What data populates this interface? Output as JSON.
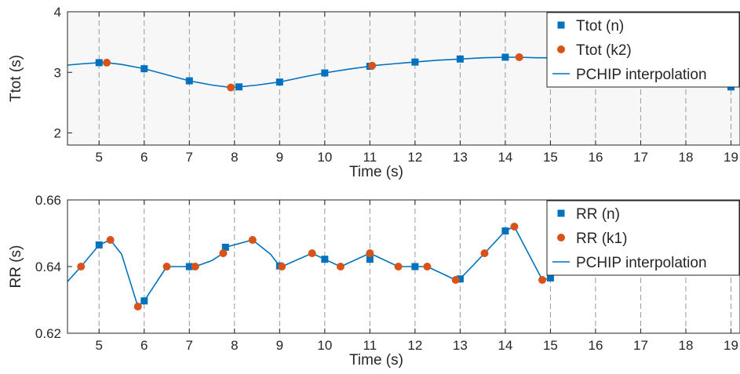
{
  "colors": {
    "series_n": "#0072BD",
    "series_k": "#D95319",
    "interp": "#0072BD",
    "panel_bg_top": "#F7F7F7",
    "axis": "#262626",
    "vline": "#9A9A9A"
  },
  "chart_data": [
    {
      "type": "line",
      "xlabel": "Time (s)",
      "ylabel": "Ttot (s)",
      "xlim": [
        4.3,
        19.2
      ],
      "ylim": [
        1.8,
        4.0
      ],
      "xticks": [
        5,
        6,
        7,
        8,
        9,
        10,
        11,
        12,
        13,
        14,
        15,
        16,
        17,
        18,
        19
      ],
      "yticks": [
        2,
        3,
        4
      ],
      "grid": "vertical dashed lines at integer seconds",
      "legend_position": "top-right",
      "legend": [
        "Ttot (n)",
        "Ttot (k2)",
        "PCHIP interpolation"
      ],
      "series": [
        {
          "name": "Ttot (n)",
          "marker": "square",
          "x": [
            5.0,
            6.0,
            7.0,
            8.1,
            9.0,
            10.0,
            11.0,
            12.0,
            13.0,
            14.0,
            19.0
          ],
          "y": [
            3.16,
            3.06,
            2.86,
            2.76,
            2.84,
            2.99,
            3.1,
            3.17,
            3.22,
            3.25,
            2.76
          ]
        },
        {
          "name": "Ttot (k2)",
          "marker": "circle",
          "x": [
            5.17,
            7.92,
            11.05,
            14.31
          ],
          "y": [
            3.16,
            2.75,
            3.11,
            3.25
          ]
        },
        {
          "name": "PCHIP interpolation",
          "marker": "none",
          "x": [
            4.3,
            4.6,
            5.0,
            5.17,
            5.5,
            6.0,
            6.5,
            7.0,
            7.5,
            7.92,
            8.1,
            8.5,
            9.0,
            9.5,
            10.0,
            10.5,
            11.0,
            11.05,
            11.5,
            12.0,
            12.5,
            13.0,
            13.5,
            14.0,
            14.31,
            14.7,
            15.0,
            15.3
          ],
          "y": [
            3.12,
            3.14,
            3.16,
            3.16,
            3.13,
            3.06,
            2.96,
            2.86,
            2.79,
            2.75,
            2.76,
            2.79,
            2.84,
            2.92,
            2.99,
            3.05,
            3.1,
            3.11,
            3.14,
            3.17,
            3.2,
            3.22,
            3.24,
            3.25,
            3.25,
            3.24,
            3.24,
            3.24
          ]
        }
      ]
    },
    {
      "type": "line",
      "xlabel": "Time (s)",
      "ylabel": "RR (s)",
      "xlim": [
        4.3,
        19.2
      ],
      "ylim": [
        0.62,
        0.66
      ],
      "xticks": [
        5,
        6,
        7,
        8,
        9,
        10,
        11,
        12,
        13,
        14,
        15,
        16,
        17,
        18,
        19
      ],
      "yticks": [
        0.62,
        0.64,
        0.66
      ],
      "grid": "vertical dashed lines at integer seconds",
      "legend_position": "top-right",
      "legend": [
        "RR (n)",
        "RR (k1)",
        "PCHIP interpolation"
      ],
      "series": [
        {
          "name": "RR (n)",
          "marker": "square",
          "x": [
            5.0,
            6.0,
            7.0,
            7.8,
            9.0,
            10.0,
            11.0,
            12.0,
            13.0,
            14.0,
            15.0
          ],
          "y": [
            0.6465,
            0.6297,
            0.64,
            0.6458,
            0.6402,
            0.6422,
            0.6422,
            0.64,
            0.6363,
            0.6507,
            0.6366
          ]
        },
        {
          "name": "RR (k1)",
          "marker": "circle",
          "x": [
            4.6,
            5.25,
            5.86,
            6.5,
            7.13,
            7.75,
            8.4,
            9.05,
            9.72,
            10.35,
            11.0,
            11.63,
            12.27,
            12.9,
            13.54,
            14.2,
            14.82
          ],
          "y": [
            0.64,
            0.648,
            0.628,
            0.64,
            0.64,
            0.644,
            0.648,
            0.64,
            0.644,
            0.64,
            0.644,
            0.64,
            0.64,
            0.636,
            0.644,
            0.652,
            0.636
          ]
        },
        {
          "name": "PCHIP interpolation",
          "marker": "none",
          "x": [
            4.3,
            4.6,
            5.0,
            5.25,
            5.5,
            5.86,
            6.0,
            6.5,
            7.0,
            7.13,
            7.5,
            7.75,
            7.8,
            8.4,
            8.8,
            9.0,
            9.05,
            9.72,
            10.0,
            10.35,
            11.0,
            11.63,
            12.0,
            12.27,
            12.9,
            13.0,
            13.54,
            14.0,
            14.2,
            14.82,
            15.0
          ],
          "y": [
            0.6355,
            0.64,
            0.6465,
            0.648,
            0.6437,
            0.628,
            0.6297,
            0.64,
            0.64,
            0.64,
            0.6418,
            0.644,
            0.6458,
            0.648,
            0.6437,
            0.6402,
            0.64,
            0.644,
            0.6422,
            0.64,
            0.644,
            0.64,
            0.64,
            0.64,
            0.636,
            0.6363,
            0.644,
            0.6507,
            0.652,
            0.636,
            0.6366
          ]
        }
      ]
    }
  ]
}
